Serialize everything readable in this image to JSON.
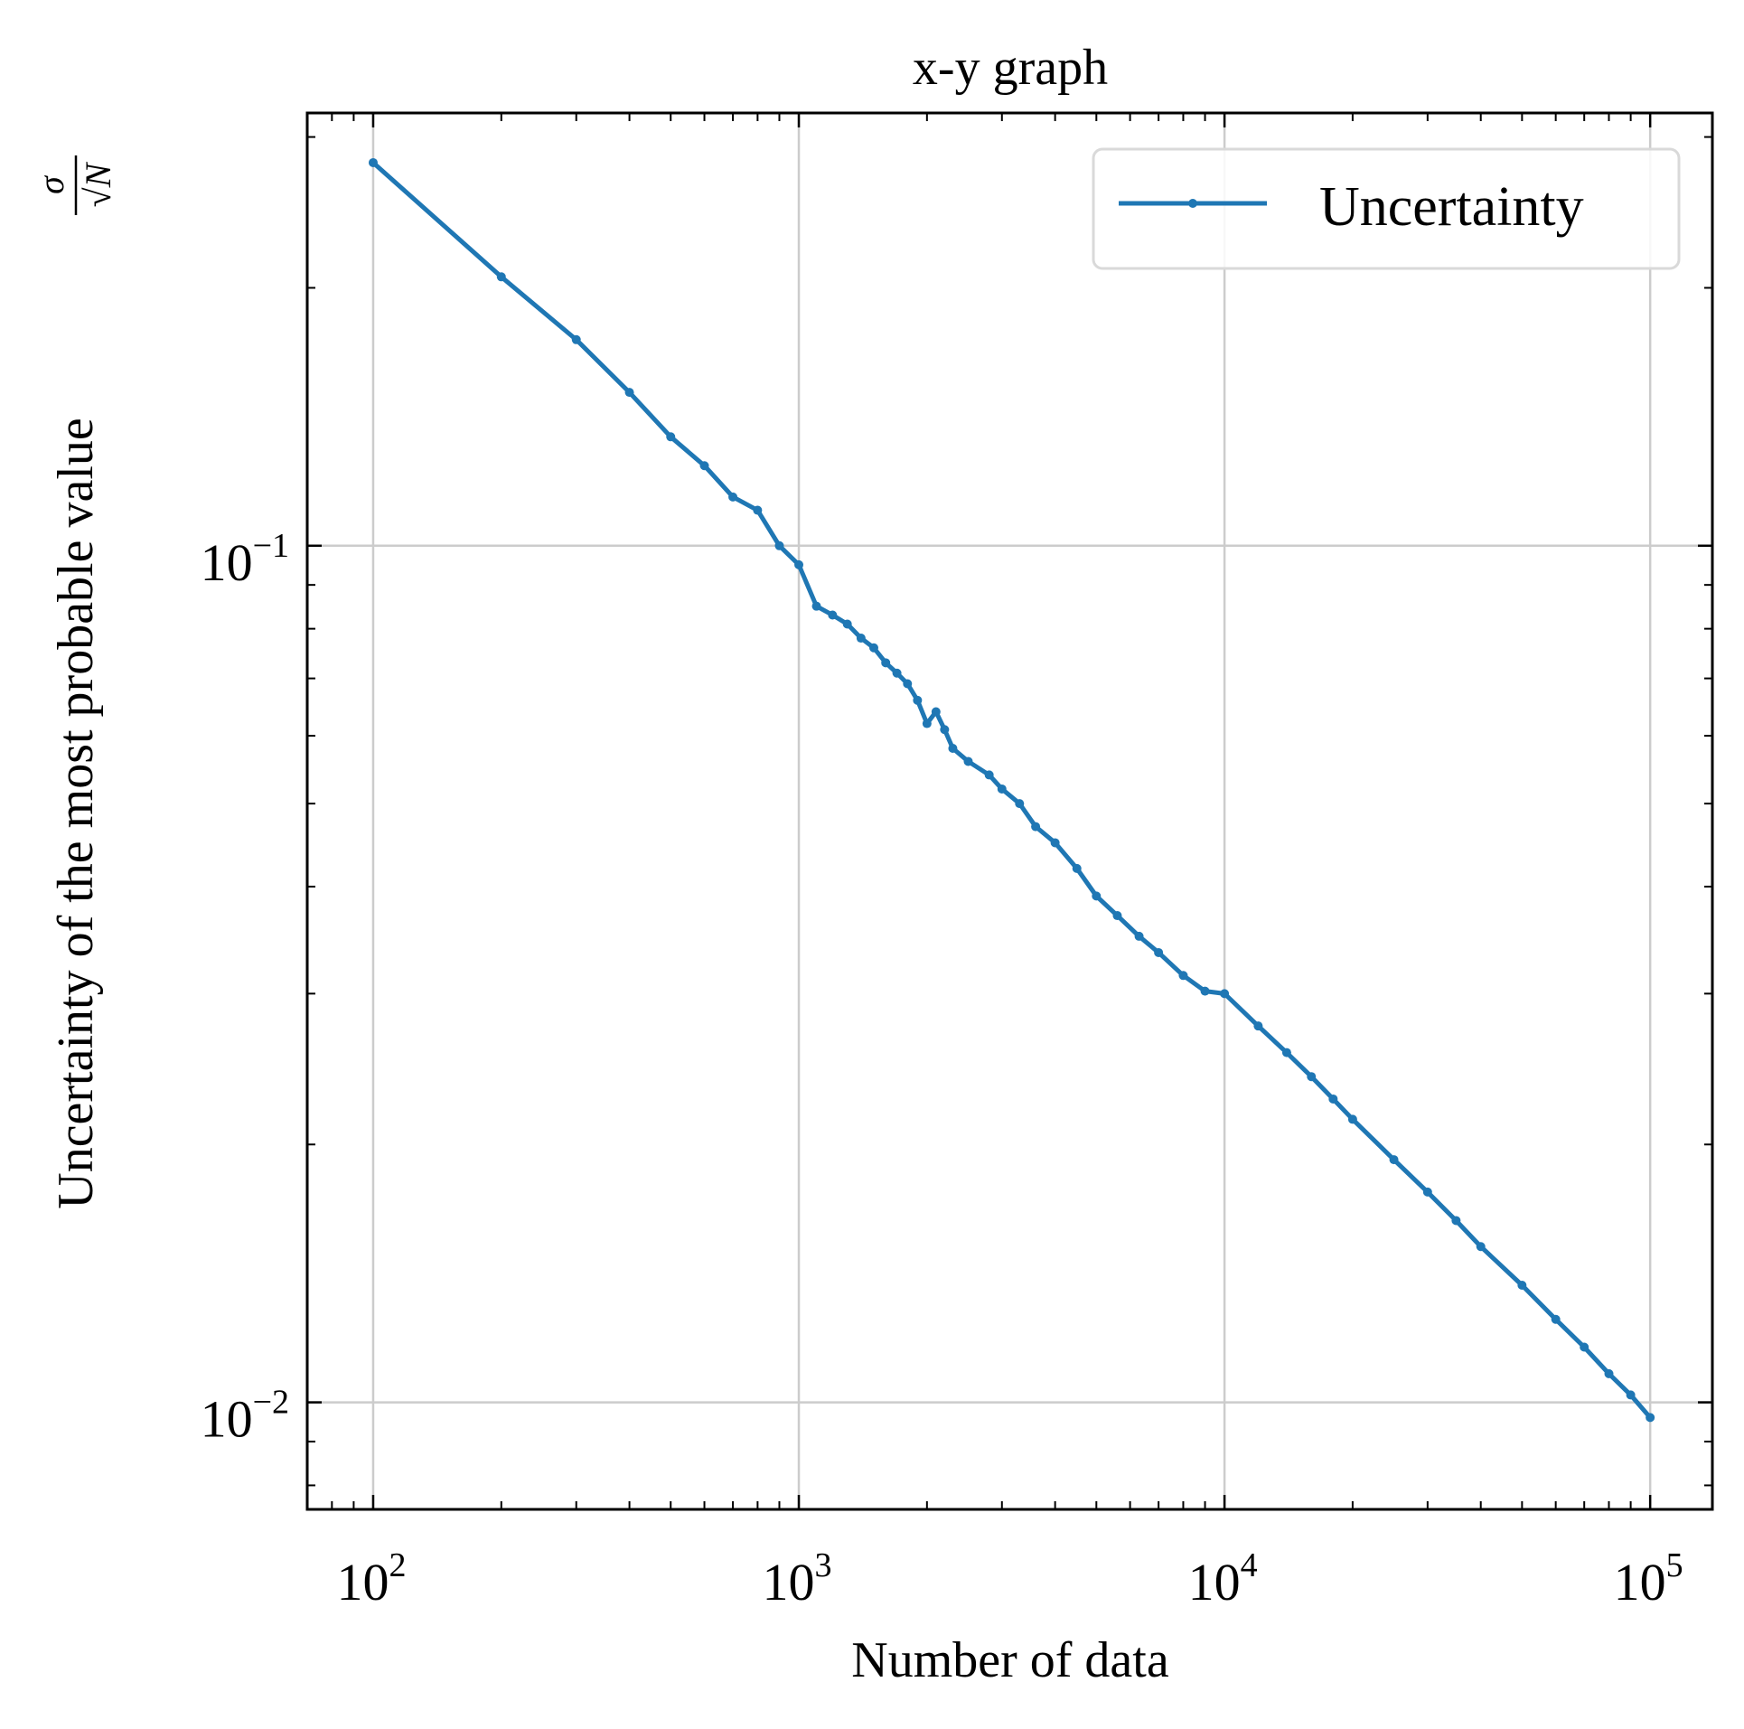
{
  "chart_data": {
    "type": "line",
    "title": "x-y graph",
    "xlabel": "Number of data",
    "ylabel": "Uncertainty of the most probable value",
    "ylabel_formula": {
      "numerator": "σ",
      "denominator": "√N"
    },
    "xscale": "log",
    "yscale": "log",
    "xlim": [
      70,
      140000
    ],
    "ylim": [
      0.0075,
      0.32
    ],
    "grid": true,
    "legend_position": "top-right",
    "x_ticks": [
      {
        "base": "10",
        "exp": "2",
        "value": 100
      },
      {
        "base": "10",
        "exp": "3",
        "value": 1000
      },
      {
        "base": "10",
        "exp": "4",
        "value": 10000
      },
      {
        "base": "10",
        "exp": "5",
        "value": 100000
      }
    ],
    "y_ticks": [
      {
        "base": "10",
        "exp": "−2",
        "value": 0.01
      },
      {
        "base": "10",
        "exp": "−1",
        "value": 0.1
      }
    ],
    "colors": {
      "series": "#1f77b4",
      "grid": "#cccccc",
      "axis": "#000000"
    },
    "series": [
      {
        "name": "Uncertainty",
        "x": [
          100,
          200,
          300,
          400,
          500,
          600,
          700,
          800,
          900,
          1000,
          1100,
          1200,
          1300,
          1400,
          1500,
          1600,
          1700,
          1800,
          1900,
          2000,
          2100,
          2200,
          2300,
          2500,
          2800,
          3000,
          3300,
          3600,
          4000,
          4500,
          5000,
          5600,
          6300,
          7000,
          8000,
          9000,
          10000,
          12000,
          14000,
          16000,
          18000,
          20000,
          25000,
          30000,
          35000,
          40000,
          50000,
          60000,
          70000,
          80000,
          90000,
          100000
        ],
        "values": [
          0.28,
          0.206,
          0.174,
          0.151,
          0.134,
          0.124,
          0.114,
          0.11,
          0.1,
          0.095,
          0.085,
          0.083,
          0.081,
          0.078,
          0.076,
          0.073,
          0.071,
          0.069,
          0.066,
          0.062,
          0.064,
          0.061,
          0.058,
          0.056,
          0.054,
          0.052,
          0.05,
          0.047,
          0.045,
          0.042,
          0.039,
          0.037,
          0.035,
          0.0335,
          0.0315,
          0.0302,
          0.03,
          0.0275,
          0.0256,
          0.024,
          0.0226,
          0.0214,
          0.0192,
          0.0176,
          0.0163,
          0.0152,
          0.0137,
          0.0125,
          0.0116,
          0.0108,
          0.0102,
          0.0096
        ]
      }
    ]
  }
}
